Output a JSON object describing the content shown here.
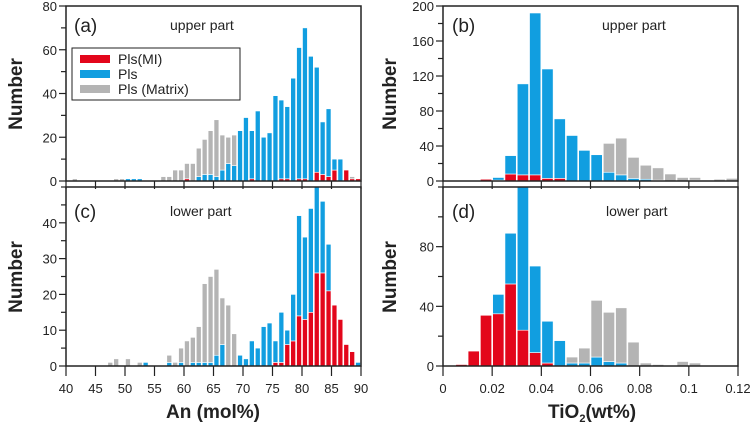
{
  "colors": {
    "mi": "#e3061b",
    "pls": "#119ee0",
    "matrix": "#b4b4b4",
    "axis": "#222222"
  },
  "legend": {
    "items": [
      {
        "key": "mi",
        "label": "Pls(MI)"
      },
      {
        "key": "pls",
        "label": "Pls"
      },
      {
        "key": "matrix",
        "label": "Pls (Matrix)"
      }
    ]
  },
  "chart_data": [
    {
      "id": "a",
      "type": "bar",
      "stacked": true,
      "panel_label": "(a)",
      "part_label": "upper part",
      "xlabel": "An (mol%)",
      "ylabel": "Number",
      "xlim": [
        40,
        90
      ],
      "ylim": [
        0,
        80
      ],
      "bin_width": 1,
      "yticks": [
        0,
        20,
        40,
        60,
        80
      ],
      "yminor": 10,
      "xticks": [
        40,
        45,
        50,
        55,
        60,
        65,
        70,
        75,
        80,
        85,
        90
      ],
      "show_xtick_labels": false,
      "x": [
        40,
        41,
        42,
        43,
        44,
        45,
        46,
        47,
        48,
        49,
        50,
        51,
        52,
        53,
        54,
        55,
        56,
        57,
        58,
        59,
        60,
        61,
        62,
        63,
        64,
        65,
        66,
        67,
        68,
        69,
        70,
        71,
        72,
        73,
        74,
        75,
        76,
        77,
        78,
        79,
        80,
        81,
        82,
        83,
        84,
        85,
        86,
        87,
        88,
        89
      ],
      "series": [
        {
          "name": "Pls(MI)",
          "key": "mi",
          "values": [
            0,
            0,
            0,
            0,
            0,
            0,
            0,
            0,
            0,
            0,
            0,
            0,
            0,
            0,
            0,
            0,
            0,
            0,
            0,
            0,
            1,
            0,
            0,
            0,
            0,
            0,
            0,
            0,
            0,
            0,
            0,
            1,
            0,
            0,
            0,
            0,
            1,
            1,
            0,
            1,
            1,
            0,
            4,
            3,
            2,
            5,
            0,
            5,
            1,
            1
          ]
        },
        {
          "name": "Pls",
          "key": "pls",
          "values": [
            0,
            0,
            0,
            0,
            0,
            0,
            0,
            0,
            0,
            0,
            1,
            1,
            1,
            0,
            0,
            0,
            0,
            0,
            0,
            0,
            0,
            0,
            2,
            3,
            3,
            2,
            5,
            8,
            7,
            23,
            29,
            22,
            32,
            20,
            22,
            39,
            36,
            33,
            47,
            60,
            69,
            57,
            48,
            24,
            31,
            5,
            10,
            0,
            0,
            0
          ]
        },
        {
          "name": "Pls (Matrix)",
          "key": "matrix",
          "values": [
            0,
            1,
            0,
            0,
            0,
            0,
            0,
            0,
            1,
            1,
            0,
            0,
            0,
            0,
            0,
            0,
            2,
            2,
            5,
            5,
            7,
            8,
            13,
            16,
            20,
            26,
            16,
            12,
            14,
            0,
            0,
            0,
            0,
            0,
            0,
            0,
            0,
            0,
            0,
            0,
            0,
            0,
            0,
            0,
            0,
            0,
            0,
            0,
            1,
            0
          ]
        }
      ]
    },
    {
      "id": "b",
      "type": "bar",
      "stacked": true,
      "panel_label": "(b)",
      "part_label": "upper part",
      "xlabel": "TiO2 (wt%)",
      "ylabel": "Number",
      "xlim": [
        0,
        0.12
      ],
      "ylim": [
        0,
        200
      ],
      "bin_width": 0.005,
      "yticks": [
        0,
        40,
        80,
        120,
        160,
        200
      ],
      "yminor": 20,
      "xticks": [
        0,
        0.02,
        0.04,
        0.06,
        0.08,
        0.1,
        0.12
      ],
      "show_xtick_labels": false,
      "x": [
        0,
        0.005,
        0.01,
        0.015,
        0.02,
        0.025,
        0.03,
        0.035,
        0.04,
        0.045,
        0.05,
        0.055,
        0.06,
        0.065,
        0.07,
        0.075,
        0.08,
        0.085,
        0.09,
        0.095,
        0.1,
        0.105,
        0.11,
        0.115
      ],
      "series": [
        {
          "name": "Pls(MI)",
          "key": "mi",
          "values": [
            0,
            0,
            0,
            2,
            1,
            8,
            7,
            7,
            3,
            3,
            0,
            0,
            0,
            0,
            0,
            0,
            0,
            0,
            0,
            0,
            0,
            0,
            0,
            0
          ]
        },
        {
          "name": "Pls",
          "key": "pls",
          "values": [
            0,
            0,
            0,
            0,
            3,
            21,
            104,
            185,
            125,
            68,
            52,
            35,
            30,
            10,
            7,
            3,
            2,
            1,
            0,
            0,
            1,
            0,
            0,
            0
          ]
        },
        {
          "name": "Pls (Matrix)",
          "key": "matrix",
          "values": [
            0,
            0,
            0,
            0,
            0,
            0,
            0,
            0,
            0,
            0,
            0,
            0,
            0,
            33,
            42,
            24,
            16,
            14,
            8,
            4,
            3,
            1,
            2,
            3
          ]
        }
      ]
    },
    {
      "id": "c",
      "type": "bar",
      "stacked": true,
      "panel_label": "(c)",
      "part_label": "lower part",
      "xlabel": "An (mol%)",
      "ylabel": "Number",
      "xlim": [
        40,
        90
      ],
      "ylim": [
        0,
        50
      ],
      "bin_width": 1,
      "yticks": [
        0,
        10,
        20,
        30,
        40
      ],
      "yminor": 5,
      "xticks": [
        40,
        45,
        50,
        55,
        60,
        65,
        70,
        75,
        80,
        85,
        90
      ],
      "show_xtick_labels": true,
      "x": [
        40,
        41,
        42,
        43,
        44,
        45,
        46,
        47,
        48,
        49,
        50,
        51,
        52,
        53,
        54,
        55,
        56,
        57,
        58,
        59,
        60,
        61,
        62,
        63,
        64,
        65,
        66,
        67,
        68,
        69,
        70,
        71,
        72,
        73,
        74,
        75,
        76,
        77,
        78,
        79,
        80,
        81,
        82,
        83,
        84,
        85,
        86,
        87,
        88,
        89
      ],
      "series": [
        {
          "name": "Pls(MI)",
          "key": "mi",
          "values": [
            0,
            0,
            0,
            0,
            0,
            0,
            0,
            0,
            0,
            0,
            0,
            0,
            0,
            0,
            0,
            0,
            0,
            0,
            0,
            0,
            0,
            0,
            0,
            0,
            0,
            0,
            0,
            0,
            0,
            0,
            0,
            0,
            0,
            0,
            0,
            1,
            1,
            6,
            7,
            14,
            13,
            15,
            26,
            26,
            21,
            17,
            13,
            6,
            4,
            0
          ]
        },
        {
          "name": "Pls",
          "key": "pls",
          "values": [
            0,
            0,
            0,
            0,
            0,
            0,
            0,
            0,
            0,
            0,
            0,
            0,
            0,
            1,
            0,
            0,
            0,
            1,
            0,
            1,
            0,
            1,
            1,
            1,
            1,
            3,
            6,
            0,
            0,
            3,
            2,
            7,
            5,
            11,
            12,
            6,
            14,
            4,
            13,
            28,
            23,
            29,
            24,
            20,
            13,
            0,
            0,
            0,
            0,
            1
          ]
        },
        {
          "name": "Pls (Matrix)",
          "key": "matrix",
          "values": [
            0,
            0,
            0,
            0,
            0,
            0,
            0,
            1,
            2,
            0,
            2,
            0,
            1,
            0,
            0,
            0,
            0,
            2,
            1,
            4,
            7,
            7,
            10,
            22,
            24,
            24,
            13,
            17,
            9,
            0,
            0,
            0,
            0,
            0,
            0,
            0,
            0,
            0,
            0,
            0,
            0,
            0,
            0,
            0,
            0,
            0,
            0,
            0,
            0,
            0
          ]
        }
      ]
    },
    {
      "id": "d",
      "type": "bar",
      "stacked": true,
      "panel_label": "(d)",
      "part_label": "lower part",
      "xlabel": "TiO2 (wt%)",
      "ylabel": "Number",
      "xlim": [
        0,
        0.12
      ],
      "ylim": [
        0,
        120
      ],
      "bin_width": 0.005,
      "yticks": [
        0,
        40,
        80
      ],
      "yminor": 20,
      "xticks": [
        0,
        0.02,
        0.04,
        0.06,
        0.08,
        0.1,
        0.12
      ],
      "show_xtick_labels": true,
      "x": [
        0,
        0.005,
        0.01,
        0.015,
        0.02,
        0.025,
        0.03,
        0.035,
        0.04,
        0.045,
        0.05,
        0.055,
        0.06,
        0.065,
        0.07,
        0.075,
        0.08,
        0.085,
        0.09,
        0.095,
        0.1,
        0.105,
        0.11,
        0.115
      ],
      "series": [
        {
          "name": "Pls(MI)",
          "key": "mi",
          "values": [
            0,
            1,
            10,
            34,
            35,
            55,
            24,
            9,
            2,
            0,
            0,
            0,
            0,
            0,
            0,
            0,
            0,
            0,
            0,
            0,
            0,
            0,
            0,
            0
          ]
        },
        {
          "name": "Pls",
          "key": "pls",
          "values": [
            0,
            0,
            0,
            0,
            13,
            34,
            96,
            58,
            28,
            17,
            2,
            2,
            6,
            3,
            2,
            0,
            0,
            0,
            0,
            0,
            0,
            0,
            0,
            0
          ]
        },
        {
          "name": "Pls (Matrix)",
          "key": "matrix",
          "values": [
            0,
            0,
            0,
            0,
            0,
            0,
            0,
            0,
            0,
            0,
            4,
            10,
            38,
            33,
            37,
            16,
            2,
            1,
            0,
            3,
            2,
            0,
            0,
            0
          ]
        }
      ]
    }
  ],
  "axis_titles": {
    "left_x": "An (mol%)",
    "right_x_main": "TiO",
    "right_x_sub": "2",
    "right_x_tail": "(wt%)",
    "y": "Number"
  }
}
